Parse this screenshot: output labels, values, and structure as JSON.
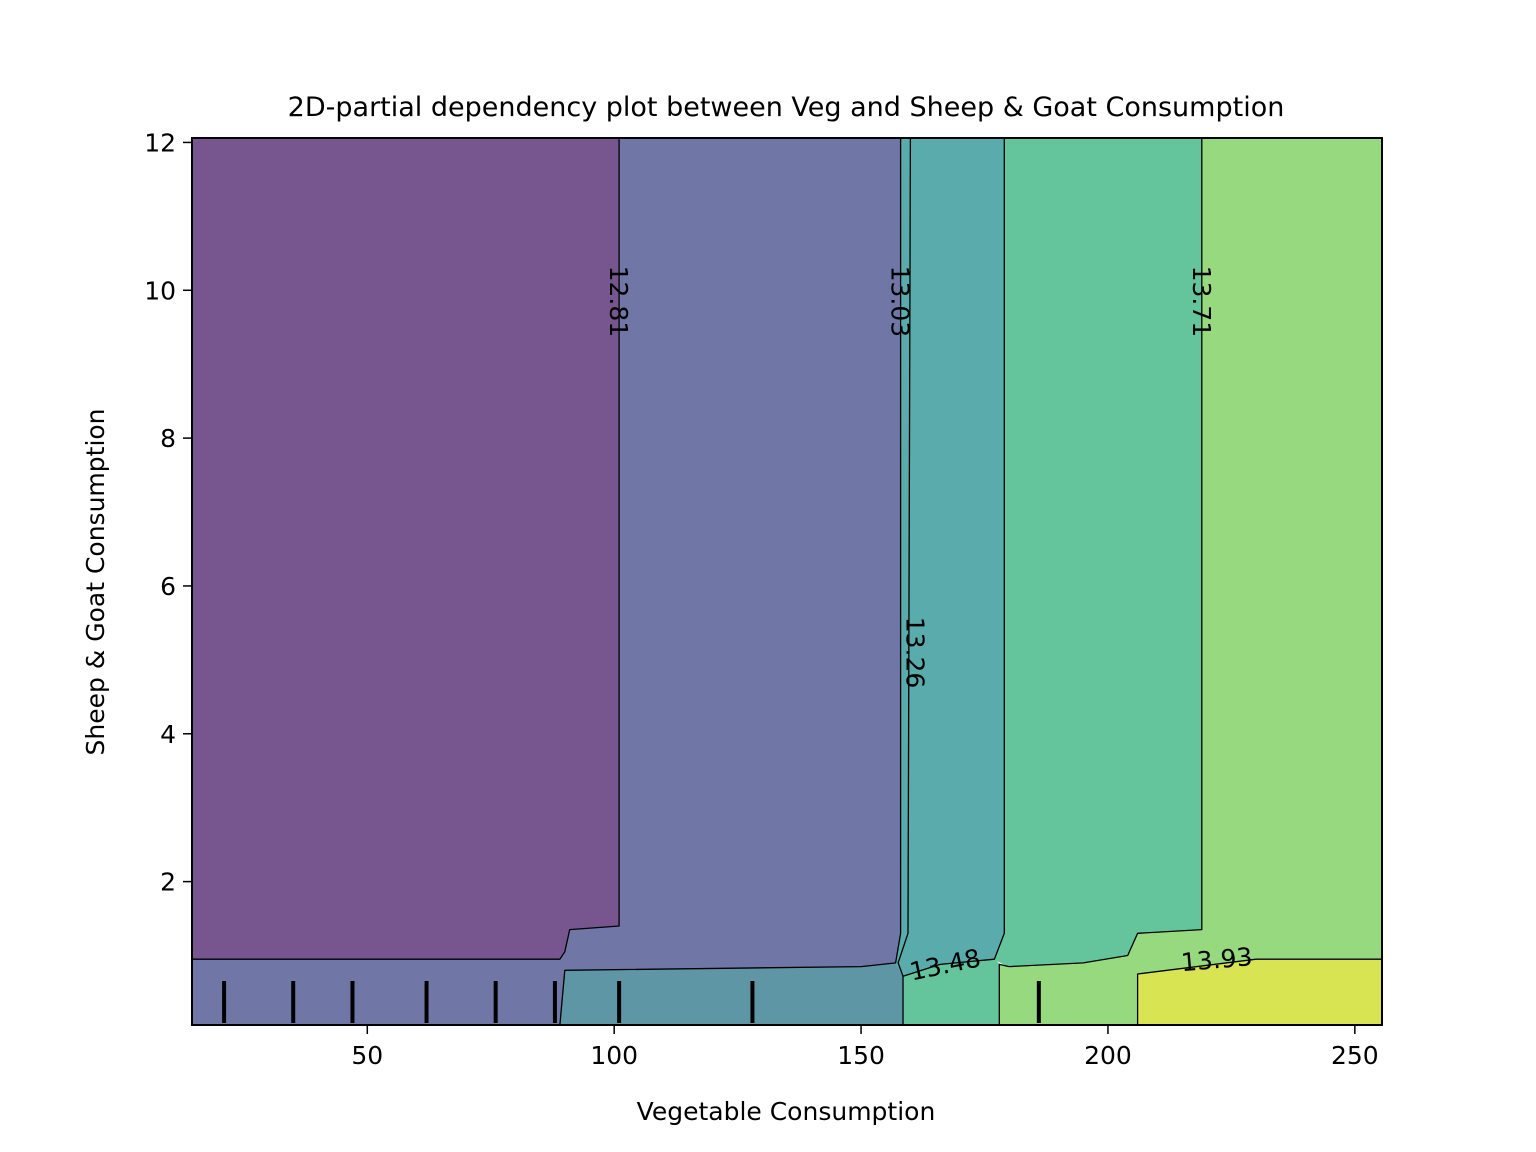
{
  "chart_data": {
    "type": "contour",
    "title": "2D-partial dependency plot between Veg and Sheep & Goat Consumption",
    "xlabel": "Vegetable Consumption",
    "ylabel": "Sheep & Goat Consumption",
    "xlim": [
      14.5,
      255.5
    ],
    "ylim": [
      0.06,
      12.06
    ],
    "xticks": [
      50,
      100,
      150,
      200,
      250
    ],
    "yticks": [
      2,
      4,
      6,
      8,
      10,
      12
    ],
    "grid": false,
    "colormap": "viridis",
    "contour_levels": [
      12.81,
      13.03,
      13.26,
      13.48,
      13.71,
      13.93
    ],
    "contour_labels": [
      "12.81",
      "13.03",
      "13.26",
      "13.48",
      "13.71",
      "13.93"
    ],
    "rug_x": [
      21,
      35,
      47,
      62,
      76,
      88,
      101,
      128,
      186
    ],
    "regions": [
      {
        "color": "#77568f",
        "points": [
          [
            14.5,
            0.95
          ],
          [
            89,
            0.95
          ],
          [
            90,
            1.05
          ],
          [
            91,
            1.35
          ],
          [
            101,
            1.4
          ],
          [
            101,
            12.06
          ],
          [
            14.5,
            12.06
          ]
        ]
      },
      {
        "color": "#7077a6",
        "points": [
          [
            101,
            12.06
          ],
          [
            101,
            1.4
          ],
          [
            91,
            1.35
          ],
          [
            90,
            1.05
          ],
          [
            89,
            0.95
          ],
          [
            14.5,
            0.95
          ],
          [
            14.5,
            0.06
          ],
          [
            89,
            0.06
          ],
          [
            90,
            0.8
          ],
          [
            150,
            0.85
          ],
          [
            157,
            0.9
          ],
          [
            158,
            1.3
          ],
          [
            158,
            12.06
          ]
        ]
      },
      {
        "color": "#5f96a6",
        "points": [
          [
            89,
            0.06
          ],
          [
            158.5,
            0.06
          ],
          [
            158.5,
            0.72
          ],
          [
            157,
            0.9
          ],
          [
            150,
            0.85
          ],
          [
            90,
            0.8
          ]
        ]
      },
      {
        "color": "#5aabab",
        "points": [
          [
            158,
            12.06
          ],
          [
            158,
            1.3
          ],
          [
            157,
            0.9
          ],
          [
            158.5,
            0.72
          ],
          [
            166,
            0.88
          ],
          [
            177,
            0.95
          ],
          [
            179,
            1.3
          ],
          [
            179,
            12.06
          ]
        ]
      },
      {
        "color": "#64c49c",
        "points": [
          [
            158.5,
            0.06
          ],
          [
            178,
            0.06
          ],
          [
            178,
            0.88
          ],
          [
            177,
            0.95
          ],
          [
            166,
            0.88
          ],
          [
            158.5,
            0.72
          ]
        ]
      },
      {
        "color": "#64c49c",
        "points": [
          [
            179,
            12.06
          ],
          [
            179,
            1.3
          ],
          [
            177,
            0.95
          ],
          [
            180,
            0.85
          ],
          [
            195,
            0.9
          ],
          [
            204,
            1.0
          ],
          [
            206,
            1.3
          ],
          [
            219,
            1.35
          ],
          [
            219,
            12.06
          ]
        ]
      },
      {
        "color": "#97d97f",
        "points": [
          [
            219,
            12.06
          ],
          [
            219,
            1.35
          ],
          [
            206,
            1.3
          ],
          [
            204,
            1.0
          ],
          [
            195,
            0.9
          ],
          [
            180,
            0.85
          ],
          [
            178,
            0.88
          ],
          [
            178,
            0.06
          ],
          [
            206,
            0.06
          ],
          [
            206,
            0.75
          ],
          [
            230,
            0.95
          ],
          [
            255.5,
            0.95
          ],
          [
            255.5,
            12.06
          ]
        ]
      },
      {
        "color": "#d9e453",
        "points": [
          [
            206,
            0.06
          ],
          [
            255.5,
            0.06
          ],
          [
            255.5,
            0.95
          ],
          [
            230,
            0.95
          ],
          [
            206,
            0.75
          ]
        ]
      }
    ],
    "lines": [
      {
        "level": "12.81",
        "points": [
          [
            14.5,
            0.95
          ],
          [
            89,
            0.95
          ],
          [
            90,
            1.05
          ],
          [
            91,
            1.35
          ],
          [
            101,
            1.4
          ],
          [
            101,
            12.06
          ]
        ]
      },
      {
        "level": "13.03",
        "points": [
          [
            89,
            0.06
          ],
          [
            90,
            0.8
          ],
          [
            150,
            0.85
          ],
          [
            157,
            0.9
          ],
          [
            158,
            1.3
          ],
          [
            158,
            12.06
          ]
        ]
      },
      {
        "level": "13.26",
        "points": [
          [
            158.5,
            0.06
          ],
          [
            158.5,
            0.72
          ],
          [
            157.5,
            0.9
          ],
          [
            159.5,
            1.3
          ],
          [
            160,
            12.06
          ]
        ]
      },
      {
        "level": "13.48",
        "points": [
          [
            158.5,
            0.72
          ],
          [
            166,
            0.88
          ],
          [
            177,
            0.95
          ],
          [
            179,
            1.3
          ],
          [
            179,
            12.06
          ]
        ]
      },
      {
        "level": "13.71",
        "points": [
          [
            178,
            0.06
          ],
          [
            178,
            0.88
          ],
          [
            180,
            0.85
          ],
          [
            195,
            0.9
          ],
          [
            204,
            1.0
          ],
          [
            206,
            1.3
          ],
          [
            219,
            1.35
          ],
          [
            219,
            12.06
          ]
        ]
      },
      {
        "level": "13.93",
        "points": [
          [
            206,
            0.06
          ],
          [
            206,
            0.75
          ],
          [
            230,
            0.95
          ],
          [
            255.5,
            0.95
          ]
        ]
      }
    ],
    "inline_labels": [
      {
        "text": "12.81",
        "x": 101,
        "y": 9.85,
        "rotate": 90
      },
      {
        "text": "13.03",
        "x": 158,
        "y": 9.85,
        "rotate": 90
      },
      {
        "text": "13.26",
        "x": 161,
        "y": 5.1,
        "rotate": 90
      },
      {
        "text": "13.48",
        "x": 167,
        "y": 0.88,
        "rotate": -12
      },
      {
        "text": "13.71",
        "x": 219,
        "y": 9.85,
        "rotate": 90
      },
      {
        "text": "13.93",
        "x": 222,
        "y": 0.95,
        "rotate": -5
      }
    ]
  }
}
